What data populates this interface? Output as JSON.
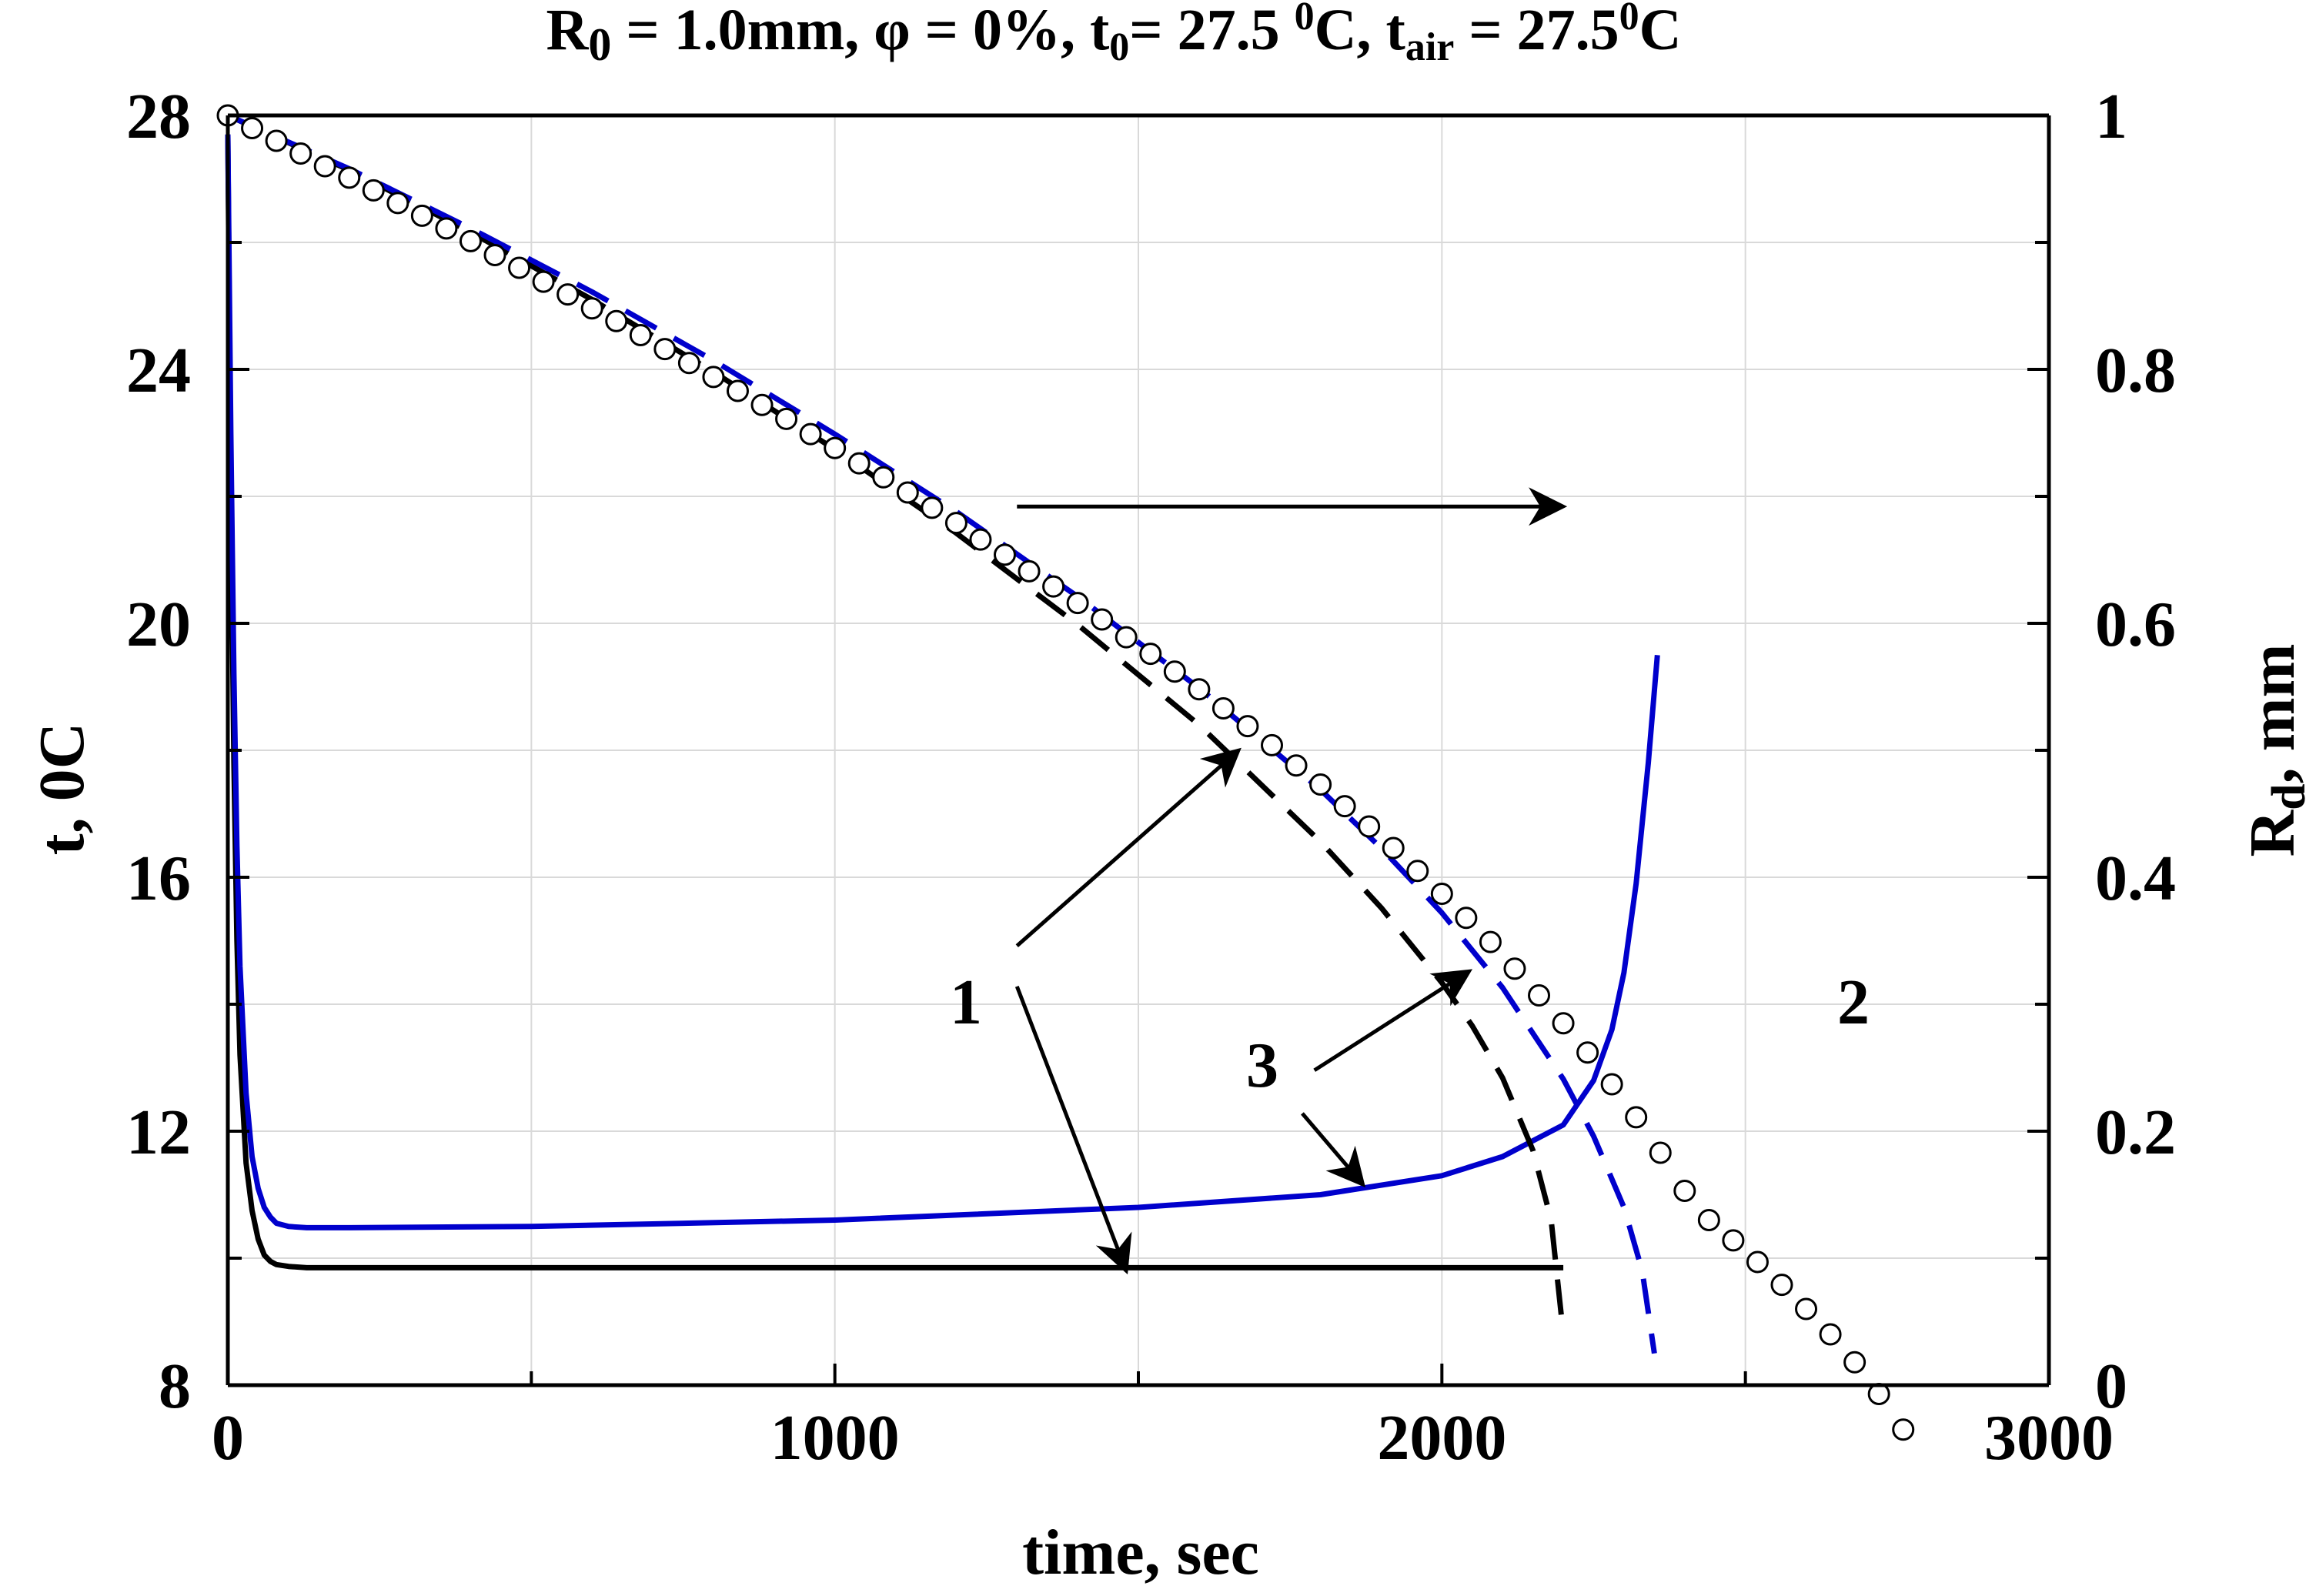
{
  "chart_data": {
    "type": "line",
    "title_parts": {
      "r": "R",
      "r_sub": "0",
      "r_val": " = 1.0mm, φ = 0%, t",
      "t0_sub": "0",
      "t0_val": "= 27.5 ",
      "t0_sup": "0",
      "t0_unit": "C, t",
      "tair_sub": "air",
      "tair_val": " = 27.5",
      "tair_sup": "0",
      "tair_unit": "C"
    },
    "xlabel": "time, sec",
    "ylabel_left": {
      "main": "t, 0",
      "unit": "C"
    },
    "ylabel_right": {
      "main": "R",
      "sub": "d",
      "unit": ", mm"
    },
    "xlim": [
      0,
      3000
    ],
    "ylim_left": [
      8,
      28
    ],
    "ylim_right": [
      0,
      1
    ],
    "x_ticks": [
      0,
      1000,
      2000,
      3000
    ],
    "x_tick_labels": [
      "0",
      "1000",
      "2000",
      "3000"
    ],
    "y_left_ticks": [
      8,
      12,
      16,
      20,
      24,
      28
    ],
    "y_left_tick_labels": [
      "8",
      "12",
      "16",
      "20",
      "24",
      "28"
    ],
    "y_right_ticks": [
      0,
      0.2,
      0.4,
      0.6,
      0.8,
      1
    ],
    "y_right_tick_labels": [
      "0",
      "0.2",
      "0.4",
      "0.6",
      "0.8",
      "1"
    ],
    "grid": true,
    "colors": {
      "black": "#000000",
      "blue": "#0000cc",
      "grid": "#d9d9d9"
    },
    "series": [
      {
        "axis": "left",
        "style": "solid",
        "color": "#000000",
        "x": [
          0,
          5,
          10,
          15,
          20,
          30,
          40,
          50,
          60,
          70,
          80,
          100,
          130,
          200,
          500,
          1000,
          1500,
          2000,
          2200
        ],
        "y": [
          27.7,
          22.0,
          17.8,
          15.0,
          13.2,
          11.5,
          10.75,
          10.3,
          10.05,
          9.95,
          9.9,
          9.87,
          9.85,
          9.85,
          9.85,
          9.85,
          9.85,
          9.85,
          9.85
        ]
      },
      {
        "axis": "left",
        "style": "solid",
        "color": "#0000cc",
        "x": [
          0,
          5,
          10,
          15,
          20,
          30,
          40,
          50,
          60,
          70,
          80,
          100,
          130,
          200,
          500,
          1000,
          1500,
          1800,
          2000,
          2100,
          2200,
          2250,
          2280,
          2300,
          2320,
          2340,
          2355
        ],
        "y": [
          27.7,
          23.0,
          19.2,
          16.5,
          14.6,
          12.6,
          11.6,
          11.1,
          10.8,
          10.65,
          10.55,
          10.5,
          10.48,
          10.48,
          10.5,
          10.6,
          10.8,
          11.0,
          11.3,
          11.6,
          12.1,
          12.8,
          13.6,
          14.5,
          15.9,
          17.8,
          19.5
        ]
      },
      {
        "axis": "right",
        "style": "dashed",
        "color": "#000000",
        "x": [
          0,
          200,
          400,
          600,
          800,
          1000,
          1200,
          1400,
          1600,
          1800,
          1900,
          2000,
          2050,
          2100,
          2150,
          2180,
          2200
        ],
        "y": [
          1.0,
          0.957,
          0.908,
          0.855,
          0.798,
          0.737,
          0.671,
          0.599,
          0.52,
          0.428,
          0.376,
          0.317,
          0.283,
          0.242,
          0.185,
          0.13,
          0.04
        ]
      },
      {
        "axis": "right",
        "style": "dashed",
        "color": "#0000cc",
        "x": [
          0,
          200,
          400,
          600,
          800,
          1000,
          1200,
          1400,
          1600,
          1800,
          1900,
          2000,
          2100,
          2200,
          2250,
          2300,
          2330,
          2350
        ],
        "y": [
          1.0,
          0.958,
          0.911,
          0.861,
          0.807,
          0.749,
          0.688,
          0.621,
          0.549,
          0.469,
          0.423,
          0.372,
          0.313,
          0.241,
          0.196,
          0.14,
          0.09,
          0.025
        ]
      },
      {
        "axis": "right",
        "style": "markers",
        "color": "#000000",
        "x": [
          0,
          40,
          80,
          120,
          160,
          200,
          240,
          280,
          320,
          360,
          400,
          440,
          480,
          520,
          560,
          600,
          640,
          680,
          720,
          760,
          800,
          840,
          880,
          920,
          960,
          1000,
          1040,
          1080,
          1120,
          1160,
          1200,
          1240,
          1280,
          1320,
          1360,
          1400,
          1440,
          1480,
          1520,
          1560,
          1600,
          1640,
          1680,
          1720,
          1760,
          1800,
          1840,
          1880,
          1920,
          1960,
          2000,
          2040,
          2080,
          2120,
          2160,
          2200,
          2240,
          2280,
          2320,
          2360,
          2400,
          2440,
          2480,
          2520,
          2560,
          2600,
          2640,
          2680,
          2720,
          2760
        ],
        "y": [
          1.0,
          0.99,
          0.98,
          0.97,
          0.96,
          0.951,
          0.941,
          0.931,
          0.921,
          0.911,
          0.901,
          0.89,
          0.88,
          0.869,
          0.859,
          0.848,
          0.838,
          0.827,
          0.816,
          0.805,
          0.794,
          0.783,
          0.772,
          0.761,
          0.749,
          0.738,
          0.726,
          0.715,
          0.703,
          0.691,
          0.679,
          0.666,
          0.654,
          0.641,
          0.629,
          0.616,
          0.603,
          0.589,
          0.576,
          0.562,
          0.548,
          0.533,
          0.519,
          0.504,
          0.488,
          0.473,
          0.456,
          0.44,
          0.423,
          0.405,
          0.387,
          0.368,
          0.349,
          0.328,
          0.307,
          0.285,
          0.262,
          0.237,
          0.211,
          0.183,
          0.153,
          0.13,
          0.114,
          0.097,
          0.079,
          0.06,
          0.04,
          0.018,
          -0.007,
          -0.035
        ]
      }
    ],
    "annotations": {
      "label_1": "1",
      "label_2": "2",
      "label_3": "3",
      "arrows": [
        {
          "from": [
            1300,
            0.692
          ],
          "to": [
            2200,
            0.692
          ],
          "axis": "right"
        },
        {
          "from": [
            1300,
            0.346
          ],
          "to": [
            1665,
            0.5
          ],
          "axis": "right"
        },
        {
          "from": [
            1300,
            0.314
          ],
          "to": [
            1480,
            0.09
          ],
          "axis": "right"
        },
        {
          "from": [
            1790,
            0.248
          ],
          "to": [
            2045,
            0.326
          ],
          "axis": "right"
        },
        {
          "from": [
            1770,
            0.214
          ],
          "to": [
            1870,
            0.158
          ],
          "axis": "right"
        }
      ]
    }
  }
}
